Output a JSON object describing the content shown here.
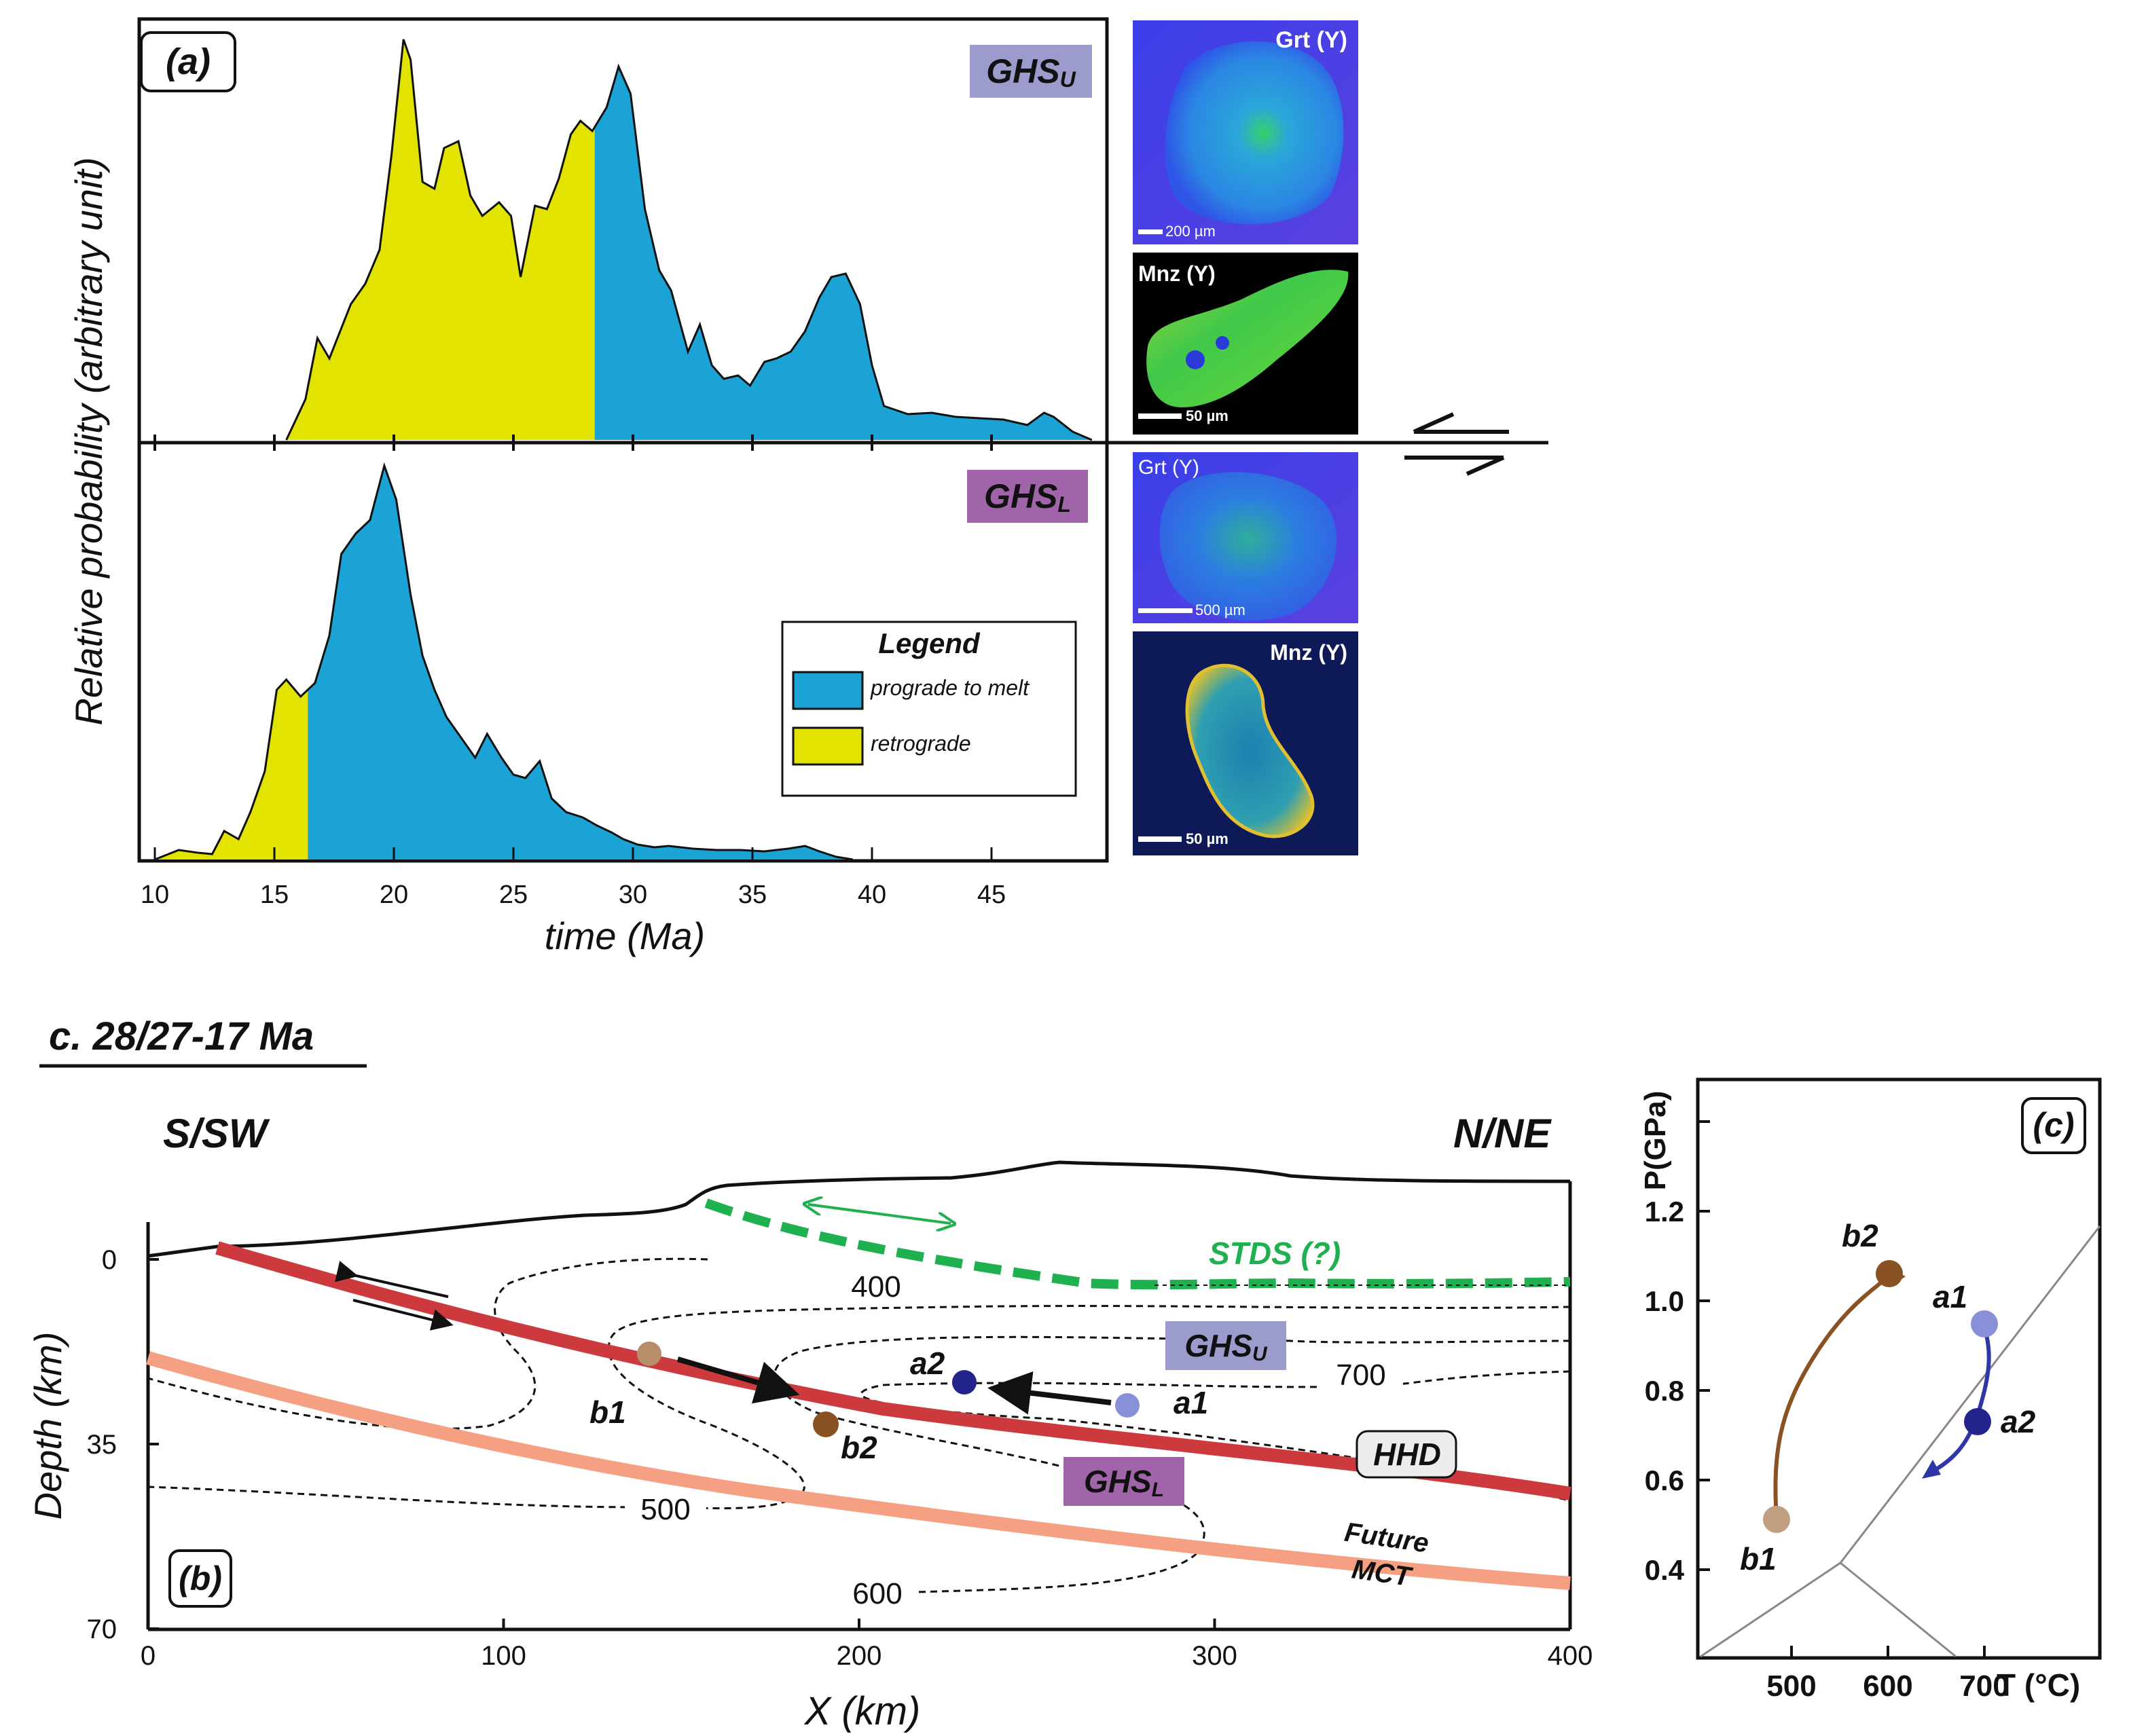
{
  "panel_a": {
    "tag": "(a)",
    "y_axis_label": "Relative probability (arbitrary unit)",
    "x_axis_label": "time (Ma)",
    "x_ticks": [
      "10",
      "15",
      "20",
      "25",
      "30",
      "35",
      "40",
      "45"
    ],
    "upper_unit": {
      "main": "GHS",
      "sub": "U",
      "color": "#9c9ccc"
    },
    "lower_unit": {
      "main": "GHS",
      "sub": "L",
      "color": "#a064a8"
    },
    "legend": {
      "title": "Legend",
      "items": [
        {
          "label": "prograde to melt",
          "color": "#1aa3d4"
        },
        {
          "label": "retrograde",
          "color": "#e3e300"
        }
      ]
    },
    "maps": [
      {
        "label": "Grt (Y)",
        "scale": "200 µm"
      },
      {
        "label": "Mnz (Y)",
        "scale": "50 µm"
      },
      {
        "label": "Grt (Y)",
        "scale": "500 µm"
      },
      {
        "label": "Mnz (Y)",
        "scale": "50 µm"
      }
    ]
  },
  "panel_b": {
    "tag": "(b)",
    "title": "c. 28/27-17 Ma",
    "left_label": "S/SW",
    "right_label": "N/NE",
    "y_axis_label": "Depth (km)",
    "x_axis_label": "X (km)",
    "x_ticks": [
      "0",
      "100",
      "200",
      "300",
      "400"
    ],
    "y_ticks": [
      "0",
      "35",
      "70"
    ],
    "isotherms": [
      "400",
      "500",
      "600",
      "700"
    ],
    "stds_label": "STDS (?)",
    "hhd_label": "HHD",
    "mct_line1": "Future",
    "mct_line2": "MCT",
    "ghsu": {
      "main": "GHS",
      "sub": "U"
    },
    "ghsl": {
      "main": "GHS",
      "sub": "L"
    },
    "points": {
      "a1": "a1",
      "a2": "a2",
      "b1": "b1",
      "b2": "b2"
    }
  },
  "panel_c": {
    "tag": "(c)",
    "y_axis_label": "P(GPa)",
    "x_axis_label": "T (°C)",
    "x_ticks": [
      "500",
      "600",
      "700"
    ],
    "y_ticks": [
      "0.4",
      "0.6",
      "0.8",
      "1.0",
      "1.2"
    ],
    "points": {
      "a1": "a1",
      "a2": "a2",
      "b1": "b1",
      "b2": "b2"
    }
  }
}
